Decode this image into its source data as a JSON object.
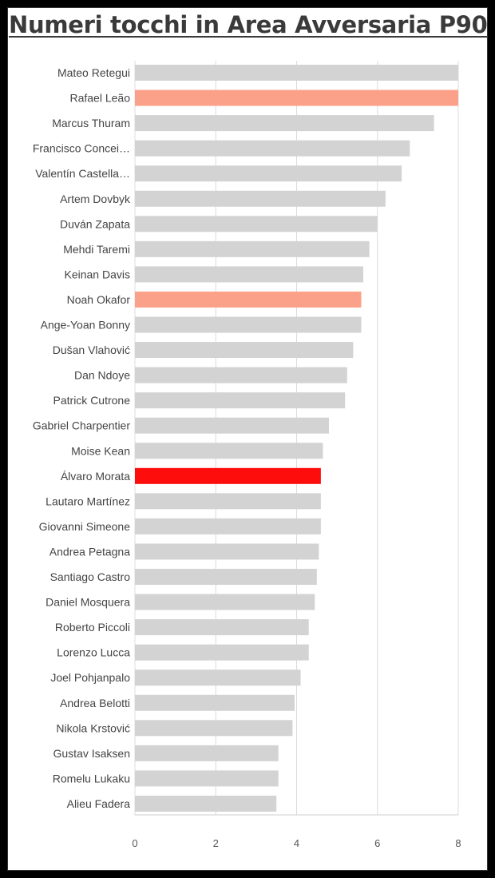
{
  "chart_data": {
    "type": "bar",
    "orientation": "horizontal",
    "title": "Numeri tocchi in Area Avversaria P90",
    "xlabel": "",
    "ylabel": "",
    "xlim": [
      0,
      8
    ],
    "ticks": [
      0,
      2,
      4,
      6,
      8
    ],
    "grid": true,
    "legend": "none",
    "categories": [
      "Mateo Retegui",
      "Rafael Leão",
      "Marcus Thuram",
      "Francisco Concei…",
      "Valentín Castella…",
      "Artem Dovbyk",
      "Duván Zapata",
      "Mehdi Taremi",
      "Keinan Davis",
      "Noah Okafor",
      "Ange-Yoan Bonny",
      "Dušan Vlahović",
      "Dan Ndoye",
      "Patrick Cutrone",
      "Gabriel Charpentier",
      "Moise Kean",
      "Álvaro Morata",
      "Lautaro Martínez",
      "Giovanni Simeone",
      "Andrea Petagna",
      "Santiago Castro",
      "Daniel Mosquera",
      "Roberto Piccoli",
      "Lorenzo Lucca",
      "Joel Pohjanpalo",
      "Andrea Belotti",
      "Nikola Krstović",
      "Gustav Isaksen",
      "Romelu Lukaku",
      "Alieu Fadera"
    ],
    "values": [
      8.0,
      8.0,
      7.4,
      6.8,
      6.6,
      6.2,
      6.0,
      5.8,
      5.65,
      5.6,
      5.6,
      5.4,
      5.25,
      5.2,
      4.8,
      4.65,
      4.6,
      4.6,
      4.6,
      4.55,
      4.5,
      4.45,
      4.3,
      4.3,
      4.1,
      3.95,
      3.9,
      3.55,
      3.55,
      3.5
    ],
    "colors": [
      "#d3d3d3",
      "#fca189",
      "#d3d3d3",
      "#d3d3d3",
      "#d3d3d3",
      "#d3d3d3",
      "#d3d3d3",
      "#d3d3d3",
      "#d3d3d3",
      "#fca189",
      "#d3d3d3",
      "#d3d3d3",
      "#d3d3d3",
      "#d3d3d3",
      "#d3d3d3",
      "#d3d3d3",
      "#fe0d0d",
      "#d3d3d3",
      "#d3d3d3",
      "#d3d3d3",
      "#d3d3d3",
      "#d3d3d3",
      "#d3d3d3",
      "#d3d3d3",
      "#d3d3d3",
      "#d3d3d3",
      "#d3d3d3",
      "#d3d3d3",
      "#d3d3d3",
      "#d3d3d3"
    ]
  }
}
